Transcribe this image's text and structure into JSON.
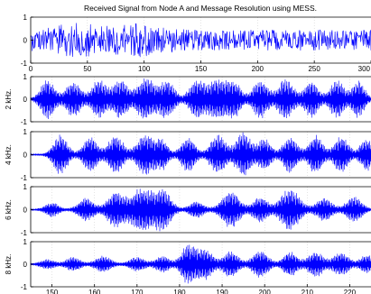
{
  "figure": {
    "title": "Received Signal from Node A and Message Resolution using MESS."
  },
  "colors": {
    "signal": "#0000ff",
    "envelope": "#808080",
    "axes": "#000000",
    "grid": "#c8c8c8",
    "background": "#ffffff"
  },
  "chart_data": [
    {
      "type": "line",
      "panel": "received-signal",
      "ylabel": "",
      "xlim": [
        0,
        300
      ],
      "ylim": [
        -1,
        1
      ],
      "xticks": [
        0,
        50,
        100,
        150,
        200,
        250,
        300
      ],
      "yticks": [
        -1,
        0,
        1
      ],
      "grid": true,
      "series": [
        {
          "color": "#0000ff",
          "style": "dense-noise-waveform",
          "approx_amplitude": 0.45,
          "burst_centers": [
            40,
            95
          ],
          "burst_amplitude": 0.75
        }
      ]
    },
    {
      "type": "line",
      "panel": "band-2khz",
      "ylabel": "2 kHz.",
      "xlim": [
        145,
        225
      ],
      "ylim": [
        -1,
        1
      ],
      "yticks": [
        -1,
        0,
        1
      ],
      "grid": true,
      "series": [
        {
          "color": "#0000ff",
          "style": "amplitude-modulated-bursts",
          "bursts": [
            {
              "center": 149,
              "width": 2.2,
              "amplitude": 0.9
            },
            {
              "center": 155,
              "width": 2.3,
              "amplitude": 0.8
            },
            {
              "center": 161,
              "width": 2.2,
              "amplitude": 0.85
            },
            {
              "center": 166,
              "width": 2.4,
              "amplitude": 0.85
            },
            {
              "center": 172,
              "width": 2.6,
              "amplitude": 0.95
            },
            {
              "center": 177,
              "width": 2.3,
              "amplitude": 0.85
            },
            {
              "center": 184,
              "width": 2.3,
              "amplitude": 0.8
            },
            {
              "center": 189,
              "width": 3.0,
              "amplitude": 0.9
            },
            {
              "center": 193,
              "width": 2.0,
              "amplitude": 0.7
            },
            {
              "center": 199,
              "width": 2.3,
              "amplitude": 0.85
            },
            {
              "center": 205,
              "width": 2.4,
              "amplitude": 0.9
            },
            {
              "center": 211,
              "width": 2.2,
              "amplitude": 0.8
            },
            {
              "center": 217,
              "width": 2.2,
              "amplitude": 0.85
            },
            {
              "center": 222,
              "width": 2.0,
              "amplitude": 0.8
            }
          ]
        }
      ]
    },
    {
      "type": "line",
      "panel": "band-4khz",
      "ylabel": "4 kHz.",
      "xlim": [
        145,
        225
      ],
      "ylim": [
        -1,
        1
      ],
      "yticks": [
        -1,
        0,
        1
      ],
      "grid": true,
      "series": [
        {
          "color": "#0000ff",
          "style": "amplitude-modulated-bursts",
          "bursts": [
            {
              "center": 152,
              "width": 2.2,
              "amplitude": 0.85
            },
            {
              "center": 159,
              "width": 2.2,
              "amplitude": 0.75
            },
            {
              "center": 165,
              "width": 2.4,
              "amplitude": 0.8
            },
            {
              "center": 172,
              "width": 2.6,
              "amplitude": 0.9
            },
            {
              "center": 176,
              "width": 1.8,
              "amplitude": 0.6
            },
            {
              "center": 182,
              "width": 2.2,
              "amplitude": 0.75
            },
            {
              "center": 189,
              "width": 2.4,
              "amplitude": 0.85
            },
            {
              "center": 195,
              "width": 2.4,
              "amplitude": 0.95
            },
            {
              "center": 200,
              "width": 2.0,
              "amplitude": 0.7
            },
            {
              "center": 206,
              "width": 2.2,
              "amplitude": 0.8
            },
            {
              "center": 212,
              "width": 2.2,
              "amplitude": 0.85
            },
            {
              "center": 218,
              "width": 2.2,
              "amplitude": 0.8
            },
            {
              "center": 224,
              "width": 2.0,
              "amplitude": 0.7
            }
          ]
        }
      ]
    },
    {
      "type": "line",
      "panel": "band-6khz",
      "ylabel": "6 kHz.",
      "xlim": [
        145,
        225
      ],
      "ylim": [
        -1,
        1
      ],
      "yticks": [
        -1,
        0,
        1
      ],
      "grid": true,
      "series": [
        {
          "color": "#0000ff",
          "style": "amplitude-modulated-bursts",
          "bursts": [
            {
              "center": 150,
              "width": 2.0,
              "amplitude": 0.3
            },
            {
              "center": 158,
              "width": 2.4,
              "amplitude": 0.5
            },
            {
              "center": 165,
              "width": 2.6,
              "amplitude": 0.8
            },
            {
              "center": 171,
              "width": 3.0,
              "amplitude": 0.95
            },
            {
              "center": 176,
              "width": 2.6,
              "amplitude": 0.85
            },
            {
              "center": 184,
              "width": 2.2,
              "amplitude": 0.35
            },
            {
              "center": 192,
              "width": 2.8,
              "amplitude": 0.8
            },
            {
              "center": 199,
              "width": 2.2,
              "amplitude": 0.55
            },
            {
              "center": 206,
              "width": 3.0,
              "amplitude": 0.9
            },
            {
              "center": 214,
              "width": 2.4,
              "amplitude": 0.5
            },
            {
              "center": 221,
              "width": 2.4,
              "amplitude": 0.55
            }
          ]
        }
      ]
    },
    {
      "type": "line",
      "panel": "band-8khz",
      "ylabel": "8 kHz.",
      "xlim": [
        145,
        225
      ],
      "xticks": [
        150,
        160,
        170,
        180,
        190,
        200,
        210,
        220
      ],
      "ylim": [
        -1,
        1
      ],
      "yticks": [
        -1,
        0,
        1
      ],
      "grid": true,
      "series": [
        {
          "color": "#0000ff",
          "style": "amplitude-modulated-bursts",
          "bursts": [
            {
              "center": 149,
              "width": 2.2,
              "amplitude": 0.2
            },
            {
              "center": 155,
              "width": 2.2,
              "amplitude": 0.3
            },
            {
              "center": 162,
              "width": 2.4,
              "amplitude": 0.35
            },
            {
              "center": 170,
              "width": 2.4,
              "amplitude": 0.3
            },
            {
              "center": 176,
              "width": 2.2,
              "amplitude": 0.35
            },
            {
              "center": 182,
              "width": 2.2,
              "amplitude": 0.85
            },
            {
              "center": 186,
              "width": 2.4,
              "amplitude": 0.65
            },
            {
              "center": 192,
              "width": 2.4,
              "amplitude": 0.55
            },
            {
              "center": 199,
              "width": 2.4,
              "amplitude": 0.6
            },
            {
              "center": 206,
              "width": 2.2,
              "amplitude": 0.55
            },
            {
              "center": 212,
              "width": 2.4,
              "amplitude": 0.55
            },
            {
              "center": 218,
              "width": 2.4,
              "amplitude": 0.5
            },
            {
              "center": 224,
              "width": 2.0,
              "amplitude": 0.4
            }
          ]
        }
      ]
    }
  ]
}
